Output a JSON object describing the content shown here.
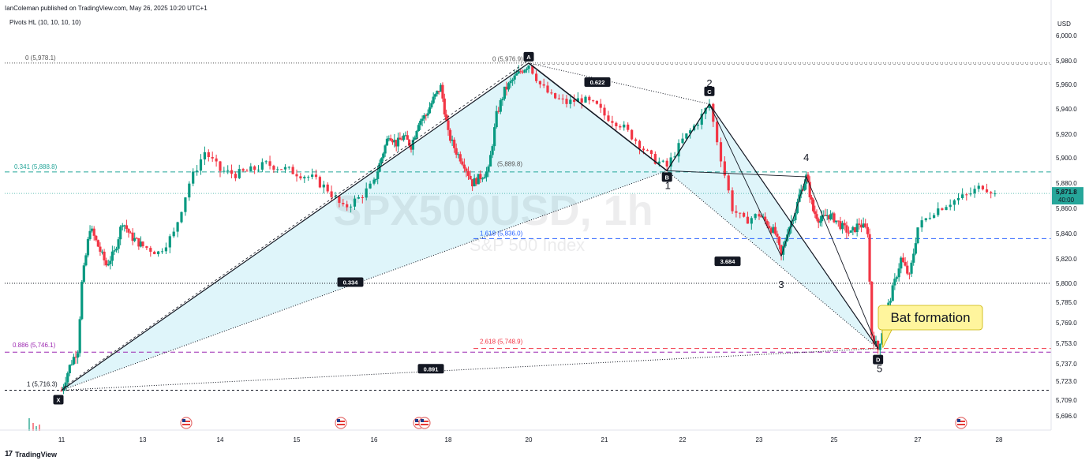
{
  "header": {
    "published": "IanColeman published on TradingView.com, May 26, 2025 10:20 UTC+1",
    "indicator": "Pivots HL (10, 10, 10, 10)"
  },
  "footer": {
    "logo_text": "TradingView",
    "logo_icon": "tradingview-logo-icon"
  },
  "watermark": {
    "symbol": "SPX500USD, 1h",
    "description": "S&P 500 Index"
  },
  "price_axis": {
    "currency": "USD",
    "ticks": [
      "6,000.0",
      "5,980.0",
      "5,960.0",
      "5,940.0",
      "5,920.0",
      "5,900.0",
      "5,880.0",
      "5,860.0",
      "5,840.0",
      "5,820.0",
      "5,800.0",
      "5,785.0",
      "5,769.0",
      "5,753.0",
      "5,737.0",
      "5,723.0",
      "5,709.0",
      "5,696.0"
    ],
    "last_price": "5,871.8",
    "countdown": "40:00"
  },
  "time_axis": {
    "ticks": [
      "11",
      "13",
      "14",
      "15",
      "16",
      "18",
      "20",
      "21",
      "22",
      "23",
      "25",
      "27",
      "28"
    ]
  },
  "levels": [
    {
      "label": "0 (5,978.1)"
    },
    {
      "label": "0 (5,976.9)"
    },
    {
      "label": "0.341 (5,888.8)"
    },
    {
      "label": "(5,889.8)"
    },
    {
      "label": "1.618 (5,836.0)"
    },
    {
      "label": "0.886 (5,746.1)"
    },
    {
      "label": "2.618 (5,748.9)"
    },
    {
      "label": "1 (5,716.3)"
    }
  ],
  "pattern": {
    "points": [
      "X",
      "A",
      "B",
      "C",
      "D"
    ],
    "ratios": [
      "0.622",
      "0.334",
      "3.684",
      "0.891"
    ],
    "waves": [
      "2",
      "1",
      "4",
      "3",
      "5"
    ],
    "callout": "Bat formation"
  },
  "colors": {
    "up": "#089981",
    "down": "#f23645",
    "fill": "#d4f1f8",
    "teal": "#26a69a",
    "blue": "#2962ff",
    "purple": "#9c27b0",
    "red": "#f23645",
    "label_bg": "#131722",
    "callout": "#fff59d"
  },
  "chart_data": {
    "type": "candlestick",
    "symbol": "SPX500USD",
    "interval": "1h",
    "title": "SPX500USD, 1h",
    "subtitle": "S&P 500 Index",
    "xlabel": "",
    "ylabel": "USD",
    "x_tick_labels": [
      "11",
      "13",
      "14",
      "15",
      "16",
      "18",
      "20",
      "21",
      "22",
      "23",
      "25",
      "27",
      "28"
    ],
    "ylim": [
      5690,
      6008
    ],
    "grid": false,
    "close_path": [
      [
        11.0,
        5716
      ],
      [
        11.1,
        5725
      ],
      [
        11.2,
        5735
      ],
      [
        11.3,
        5742
      ],
      [
        11.4,
        5748
      ],
      [
        11.5,
        5800
      ],
      [
        11.7,
        5845
      ],
      [
        11.9,
        5830
      ],
      [
        12.1,
        5815
      ],
      [
        12.3,
        5825
      ],
      [
        12.5,
        5850
      ],
      [
        12.7,
        5838
      ],
      [
        13.0,
        5830
      ],
      [
        13.2,
        5825
      ],
      [
        13.4,
        5840
      ],
      [
        13.6,
        5880
      ],
      [
        13.8,
        5905
      ],
      [
        14.0,
        5890
      ],
      [
        14.2,
        5887
      ],
      [
        14.4,
        5890
      ],
      [
        14.6,
        5895
      ],
      [
        14.8,
        5892
      ],
      [
        15.0,
        5888
      ],
      [
        15.2,
        5884
      ],
      [
        15.4,
        5875
      ],
      [
        15.6,
        5860
      ],
      [
        15.8,
        5868
      ],
      [
        16.0,
        5880
      ],
      [
        16.2,
        5900
      ],
      [
        16.4,
        5920
      ],
      [
        16.6,
        5912
      ],
      [
        16.8,
        5918
      ],
      [
        17.0,
        5910
      ],
      [
        17.2,
        5930
      ],
      [
        17.4,
        5935
      ],
      [
        17.6,
        5948
      ],
      [
        17.8,
        5958
      ],
      [
        18.0,
        5920
      ],
      [
        18.2,
        5905
      ],
      [
        18.4,
        5895
      ],
      [
        18.6,
        5880
      ],
      [
        18.8,
        5885
      ],
      [
        19.0,
        5890
      ],
      [
        19.2,
        5935
      ],
      [
        19.4,
        5955
      ],
      [
        19.7,
        5968
      ],
      [
        20.0,
        5977
      ],
      [
        20.15,
        5960
      ],
      [
        20.3,
        5950
      ],
      [
        20.5,
        5945
      ],
      [
        20.7,
        5948
      ],
      [
        20.9,
        5942
      ],
      [
        21.0,
        5935
      ],
      [
        21.2,
        5928
      ],
      [
        21.4,
        5915
      ],
      [
        21.6,
        5900
      ],
      [
        21.8,
        5893
      ],
      [
        22.0,
        5915
      ],
      [
        22.2,
        5930
      ],
      [
        22.35,
        5944
      ],
      [
        22.5,
        5900
      ],
      [
        22.65,
        5860
      ],
      [
        22.8,
        5850
      ],
      [
        23.0,
        5855
      ],
      [
        23.2,
        5848
      ],
      [
        23.4,
        5840
      ],
      [
        23.55,
        5822
      ],
      [
        23.7,
        5842
      ],
      [
        23.9,
        5858
      ],
      [
        24.0,
        5870
      ],
      [
        24.2,
        5885
      ],
      [
        24.4,
        5858
      ],
      [
        24.6,
        5850
      ],
      [
        24.8,
        5855
      ],
      [
        25.0,
        5852
      ],
      [
        25.2,
        5845
      ],
      [
        25.4,
        5840
      ],
      [
        25.6,
        5848
      ],
      [
        25.8,
        5842
      ],
      [
        25.9,
        5760
      ],
      [
        26.05,
        5748
      ],
      [
        26.2,
        5770
      ],
      [
        26.4,
        5795
      ],
      [
        26.6,
        5820
      ],
      [
        26.8,
        5805
      ],
      [
        27.0,
        5845
      ],
      [
        27.2,
        5858
      ],
      [
        27.4,
        5865
      ],
      [
        27.6,
        5870
      ],
      [
        27.8,
        5878
      ],
      [
        27.95,
        5871.8
      ]
    ],
    "harmonic_pattern": {
      "name": "Bat formation",
      "X": {
        "x": 11.0,
        "y": 5716.3
      },
      "A": {
        "x": 20.0,
        "y": 5978.1
      },
      "B": {
        "x": 21.8,
        "y": 5889.8
      },
      "C": {
        "x": 22.35,
        "y": 5944
      },
      "D": {
        "x": 26.05,
        "y": 5748.9
      },
      "ratios": {
        "AB": 0.622,
        "XB": 0.334,
        "BC_ext": 3.684,
        "XD": 0.891
      }
    },
    "elliott_waves": [
      {
        "label": "1",
        "x": 21.8,
        "y": 5889.8
      },
      {
        "label": "2",
        "x": 22.35,
        "y": 5944
      },
      {
        "label": "3",
        "x": 23.55,
        "y": 5822
      },
      {
        "label": "4",
        "x": 24.2,
        "y": 5885
      },
      {
        "label": "5",
        "x": 26.05,
        "y": 5748.9
      }
    ],
    "horizontal_levels": [
      {
        "label": "0 (5,978.1)",
        "y": 5978.1
      },
      {
        "label": "0.341 (5,888.8)",
        "y": 5888.8
      },
      {
        "label": "1.618 (5,836.0)",
        "y": 5836.0
      },
      {
        "label": "0.886 (5,746.1)",
        "y": 5746.1
      },
      {
        "label": "2.618 (5,748.9)",
        "y": 5748.9
      },
      {
        "label": "1 (5,716.3)",
        "y": 5716.3
      },
      {
        "y": 5800
      }
    ],
    "last_price": 5871.8
  }
}
